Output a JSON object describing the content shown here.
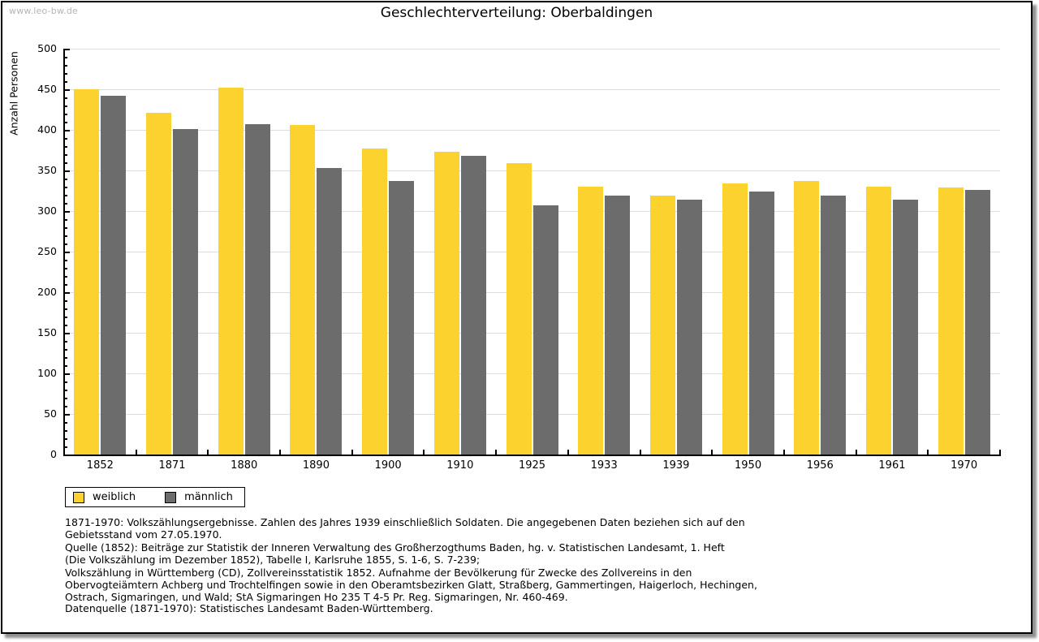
{
  "watermark": "www.leo-bw.de",
  "chart_data": {
    "type": "bar",
    "title": "Geschlechterverteilung: Oberbaldingen",
    "xlabel": "",
    "ylabel": "Anzahl Personen",
    "categories": [
      "1852",
      "1871",
      "1880",
      "1890",
      "1900",
      "1910",
      "1925",
      "1933",
      "1939",
      "1950",
      "1956",
      "1961",
      "1970"
    ],
    "series": [
      {
        "name": "weiblich",
        "color": "#FCD32E",
        "values": [
          450,
          421,
          452,
          406,
          377,
          373,
          359,
          330,
          319,
          334,
          337,
          330,
          329
        ]
      },
      {
        "name": "männlich",
        "color": "#6C6C6C",
        "values": [
          442,
          401,
          407,
          353,
          337,
          368,
          307,
          319,
          314,
          324,
          319,
          314,
          326
        ]
      }
    ],
    "ylim": [
      0,
      500
    ],
    "y_tick_interval": 50,
    "y_minor_tick_interval": 10,
    "grid": true,
    "legend_position": "bottom-left"
  },
  "legend": {
    "items": [
      {
        "label": "weiblich",
        "color": "#FCD32E"
      },
      {
        "label": "männlich",
        "color": "#6C6C6C"
      }
    ]
  },
  "footnotes": {
    "lines": [
      "1871-1970: Volkszählungsergebnisse. Zahlen des Jahres 1939 einschließlich Soldaten. Die angegebenen Daten beziehen sich auf den",
      "Gebietsstand vom 27.05.1970.",
      "Quelle (1852): Beiträge zur Statistik der Inneren Verwaltung des Großherzogthums Baden, hg. v. Statistischen Landesamt, 1. Heft",
      "(Die Volkszählung im Dezember 1852), Tabelle I, Karlsruhe 1855, S. 1-6, S. 7-239;",
      "Volkszählung in Württemberg (CD), Zollvereinsstatistik 1852. Aufnahme der Bevölkerung für Zwecke des Zollvereins in den",
      "Obervogteiämtern Achberg und Trochtelfingen sowie in den Oberamtsbezirken Glatt, Straßberg, Gammertingen, Haigerloch, Hechingen,",
      "Ostrach, Sigmaringen, und Wald; StA Sigmaringen Ho 235 T 4-5 Pr. Reg. Sigmaringen, Nr. 460-469."
    ],
    "datasource": "Datenquelle (1871-1970): Statistisches Landesamt Baden-Württemberg."
  },
  "colors": {
    "gridline": "#DDDDDD",
    "axis": "#000000",
    "watermark_text": "#B5B5B5",
    "frame_shadow": "#8F8F8F"
  }
}
